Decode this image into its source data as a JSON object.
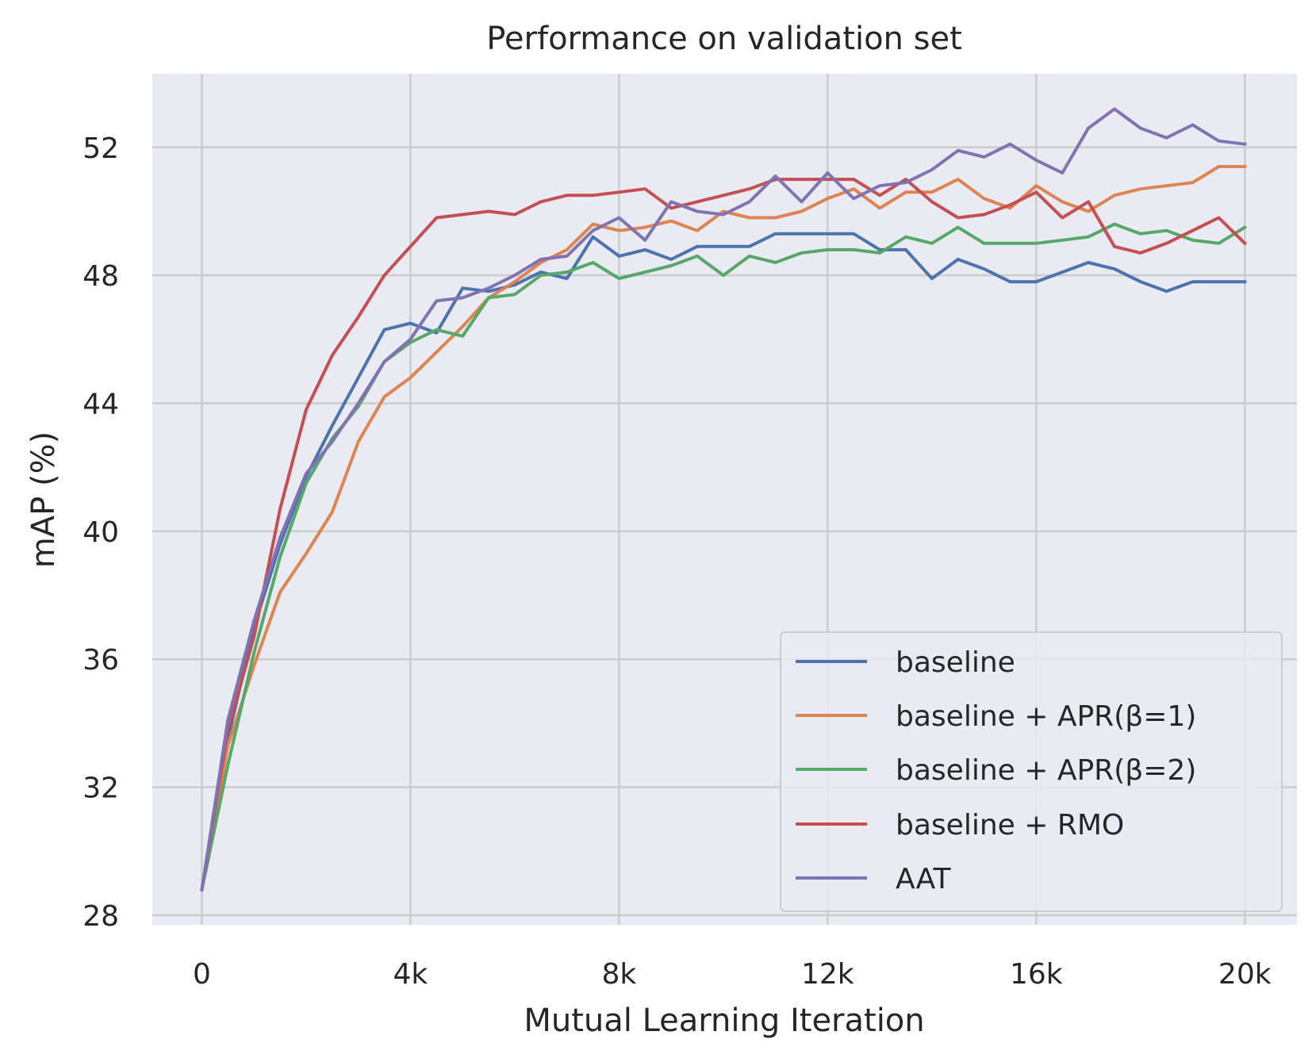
{
  "chart_data": {
    "type": "line",
    "title": "Performance on validation set",
    "xlabel": "Mutual Learning Iteration",
    "ylabel": "mAP (%)",
    "xlim": [
      -950,
      21000
    ],
    "ylim": [
      27.7,
      54.3
    ],
    "x_ticks": [
      0,
      4000,
      8000,
      12000,
      16000,
      20000
    ],
    "x_tick_labels": [
      "0",
      "4k",
      "8k",
      "12k",
      "16k",
      "20k"
    ],
    "y_ticks": [
      28,
      32,
      36,
      40,
      44,
      48,
      52
    ],
    "y_tick_labels": [
      "28",
      "32",
      "36",
      "40",
      "44",
      "48",
      "52"
    ],
    "grid": true,
    "legend_position": "bottom-right",
    "x": [
      0,
      500,
      1000,
      1500,
      2000,
      2500,
      3000,
      3500,
      4000,
      4500,
      5000,
      5500,
      6000,
      6500,
      7000,
      7500,
      8000,
      8500,
      9000,
      9500,
      10000,
      10500,
      11000,
      11500,
      12000,
      12500,
      13000,
      13500,
      14000,
      14500,
      15000,
      15500,
      16000,
      16500,
      17000,
      17500,
      18000,
      18500,
      19000,
      19500,
      20000
    ],
    "series": [
      {
        "name": "baseline",
        "color": "#4c72b0",
        "values": [
          28.8,
          33.5,
          37.0,
          39.6,
          41.7,
          43.3,
          44.8,
          46.3,
          46.5,
          46.2,
          47.6,
          47.5,
          47.7,
          48.1,
          47.9,
          49.2,
          48.6,
          48.8,
          48.5,
          48.9,
          48.9,
          48.9,
          49.3,
          49.3,
          49.3,
          49.3,
          48.8,
          48.8,
          47.9,
          48.5,
          48.2,
          47.8,
          47.8,
          48.1,
          48.4,
          48.2,
          47.8,
          47.5,
          47.8,
          47.8,
          47.8
        ]
      },
      {
        "name": "baseline + APR(β=1)",
        "color": "#dd8452",
        "values": [
          28.8,
          33.3,
          35.8,
          38.1,
          39.3,
          40.6,
          42.8,
          44.2,
          44.8,
          45.6,
          46.4,
          47.3,
          47.8,
          48.4,
          48.8,
          49.6,
          49.4,
          49.5,
          49.7,
          49.4,
          50.0,
          49.8,
          49.8,
          50.0,
          50.4,
          50.7,
          50.1,
          50.6,
          50.6,
          51.0,
          50.4,
          50.1,
          50.8,
          50.3,
          50.0,
          50.5,
          50.7,
          50.8,
          50.9,
          51.4,
          51.4
        ]
      },
      {
        "name": "baseline + APR(β=2)",
        "color": "#55a868",
        "values": [
          28.8,
          32.7,
          36.2,
          39.2,
          41.5,
          42.9,
          43.9,
          45.3,
          45.9,
          46.3,
          46.1,
          47.3,
          47.4,
          48.0,
          48.1,
          48.4,
          47.9,
          48.1,
          48.3,
          48.6,
          48.0,
          48.6,
          48.4,
          48.7,
          48.8,
          48.8,
          48.7,
          49.2,
          49.0,
          49.5,
          49.0,
          49.0,
          49.0,
          49.1,
          49.2,
          49.6,
          49.3,
          49.4,
          49.1,
          49.0,
          49.5
        ]
      },
      {
        "name": "baseline + RMO",
        "color": "#c44e52",
        "values": [
          28.8,
          33.8,
          36.7,
          40.7,
          43.8,
          45.5,
          46.7,
          48.0,
          48.9,
          49.8,
          49.9,
          50.0,
          49.9,
          50.3,
          50.5,
          50.5,
          50.6,
          50.7,
          50.1,
          50.3,
          50.5,
          50.7,
          51.0,
          51.0,
          51.0,
          51.0,
          50.5,
          51.0,
          50.3,
          49.8,
          49.9,
          50.2,
          50.6,
          49.8,
          50.3,
          48.9,
          48.7,
          49.0,
          49.4,
          49.8,
          49.0
        ]
      },
      {
        "name": "AAT",
        "color": "#8172b3",
        "values": [
          28.8,
          34.1,
          37.2,
          39.8,
          41.8,
          42.8,
          44.0,
          45.3,
          46.0,
          47.2,
          47.3,
          47.6,
          48.0,
          48.5,
          48.6,
          49.4,
          49.8,
          49.1,
          50.3,
          50.0,
          49.9,
          50.3,
          51.1,
          50.3,
          51.2,
          50.4,
          50.8,
          50.9,
          51.3,
          51.9,
          51.7,
          52.1,
          51.6,
          51.2,
          52.6,
          53.2,
          52.6,
          52.3,
          52.7,
          52.2,
          52.1
        ]
      }
    ]
  }
}
